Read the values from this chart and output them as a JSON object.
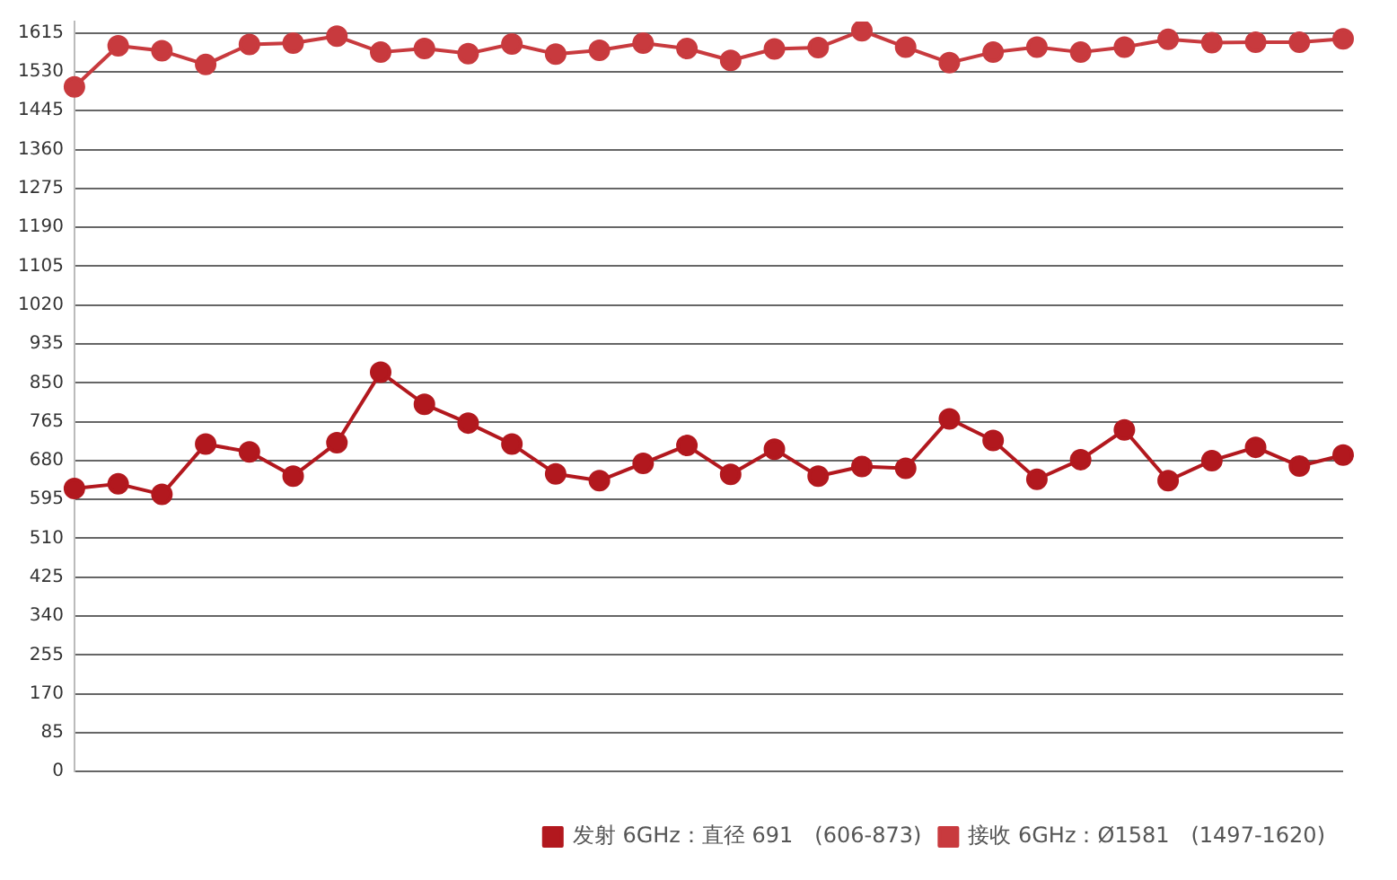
{
  "chart_data": {
    "type": "line",
    "categories": [
      null,
      null,
      null,
      null,
      null,
      null,
      null,
      null,
      null,
      null,
      null,
      null,
      null,
      null,
      null,
      null,
      null,
      null,
      null,
      null,
      null,
      null,
      null,
      null,
      null,
      null,
      null,
      null,
      null,
      null
    ],
    "series": [
      {
        "name": "发射 6GHz：直径 691　(606-873)",
        "color": "#b2181e",
        "values": [
          619,
          629,
          606,
          716,
          699,
          646,
          719,
          873,
          803,
          762,
          716,
          651,
          636,
          674,
          713,
          650,
          705,
          646,
          667,
          663,
          771,
          724,
          639,
          682,
          747,
          636,
          680,
          709,
          668,
          692
        ]
      },
      {
        "name": "接收 6GHz：Ø1581　(1497-1620)",
        "color": "#c83a3e",
        "values": [
          1497,
          1587,
          1576,
          1546,
          1590,
          1593,
          1608,
          1573,
          1581,
          1570,
          1591,
          1569,
          1577,
          1593,
          1581,
          1555,
          1580,
          1583,
          1620,
          1584,
          1550,
          1573,
          1584,
          1573,
          1584,
          1601,
          1594,
          1595,
          1595,
          1602
        ]
      }
    ],
    "ylim": [
      0,
      1640
    ],
    "yticks": [
      0,
      85,
      170,
      255,
      340,
      425,
      510,
      595,
      680,
      765,
      850,
      935,
      1020,
      1105,
      1190,
      1275,
      1360,
      1445,
      1530,
      1615
    ],
    "grid": "y",
    "legend": "bottom right",
    "marker": "circle",
    "line_style": "solid"
  }
}
